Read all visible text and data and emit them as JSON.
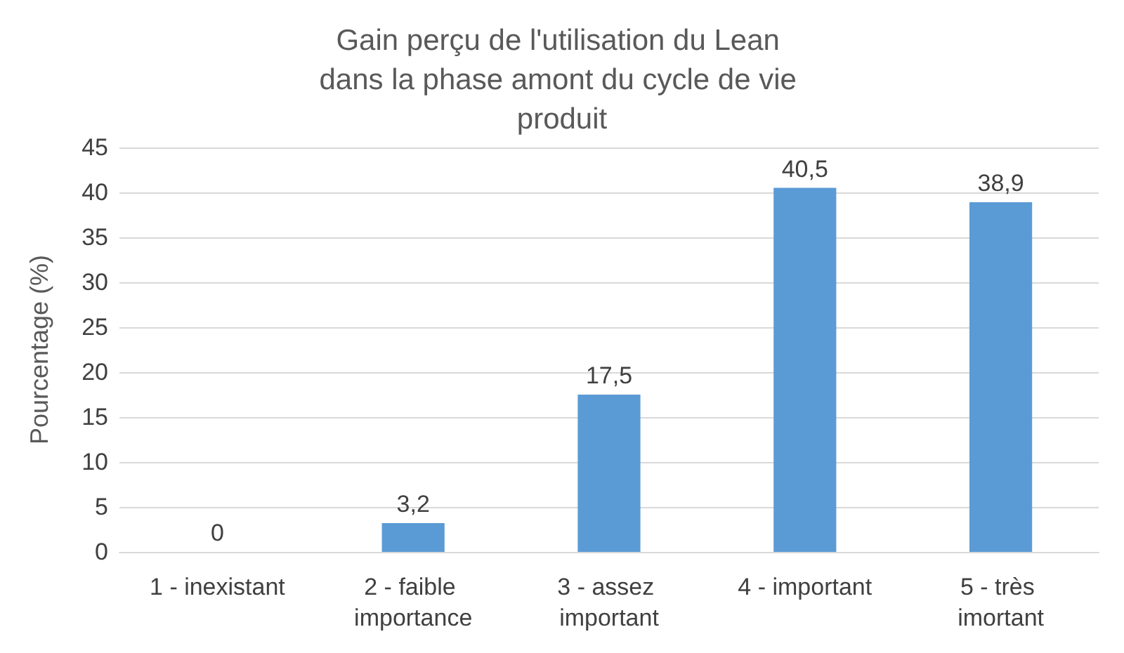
{
  "chart_data": {
    "type": "bar",
    "title": "Gain perçu de l'utilisation du Lean dans la phase amont du cycle de vie produit",
    "ylabel": "Pourcentage (%)",
    "categories": [
      "1 - inexistant",
      "2 - faible importance",
      "3 - assez important",
      "4 - important",
      "5 - très imortant"
    ],
    "values": [
      0,
      3.2,
      17.5,
      40.5,
      38.9
    ],
    "value_labels": [
      "0",
      "3,2",
      "17,5",
      "40,5",
      "38,9"
    ],
    "color": "#5b9bd5",
    "ylim": [
      0,
      45
    ],
    "yticks": [
      0,
      5,
      10,
      15,
      20,
      25,
      30,
      35,
      40,
      45
    ],
    "grid": "y"
  }
}
